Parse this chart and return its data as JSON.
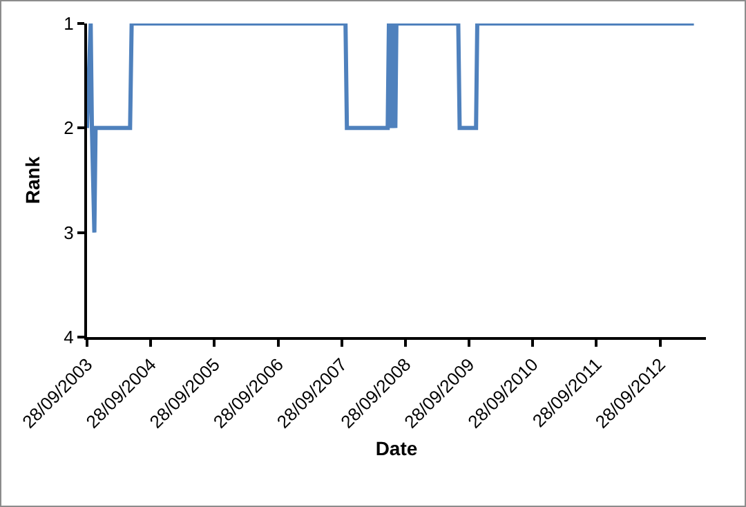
{
  "chart_data": {
    "type": "line",
    "xlabel": "Date",
    "ylabel": "Rank",
    "x": [
      "2003-09-28",
      "2003-10-19",
      "2003-10-26",
      "2003-11-09",
      "2003-11-16",
      "2004-06-01",
      "2004-06-10",
      "2007-10-20",
      "2007-10-28",
      "2008-06-18",
      "2008-06-25",
      "2008-07-10",
      "2008-07-15",
      "2008-08-01",
      "2008-08-07",
      "2009-07-28",
      "2009-08-05",
      "2009-11-07",
      "2009-11-14",
      "2013-04-10"
    ],
    "series": [
      {
        "color": "#4f81bd",
        "values": [
          2,
          1,
          2,
          3,
          2,
          2,
          1,
          1,
          2,
          2,
          1,
          2,
          1,
          2,
          1,
          1,
          2,
          2,
          1,
          1
        ]
      }
    ],
    "xlim": [
      "2003-09-28",
      "2013-06-18"
    ],
    "xticks": [
      {
        "value": "2003-09-28",
        "label": "28/09/2003"
      },
      {
        "value": "2004-09-28",
        "label": "28/09/2004"
      },
      {
        "value": "2005-09-28",
        "label": "28/09/2005"
      },
      {
        "value": "2006-09-28",
        "label": "28/09/2006"
      },
      {
        "value": "2007-09-28",
        "label": "28/09/2007"
      },
      {
        "value": "2008-09-28",
        "label": "28/09/2008"
      },
      {
        "value": "2009-09-28",
        "label": "28/09/2009"
      },
      {
        "value": "2010-09-28",
        "label": "28/09/2010"
      },
      {
        "value": "2011-09-28",
        "label": "28/09/2011"
      },
      {
        "value": "2012-09-28",
        "label": "28/09/2012"
      }
    ],
    "ylim": [
      4,
      1
    ],
    "yticks": [
      1,
      2,
      3,
      4
    ],
    "grid": false,
    "marker": "none",
    "line_style": "solid"
  }
}
